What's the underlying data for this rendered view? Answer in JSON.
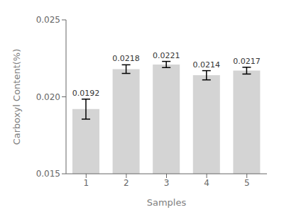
{
  "chart_data": {
    "type": "bar",
    "categories": [
      "1",
      "2",
      "3",
      "4",
      "5"
    ],
    "values": [
      0.0192,
      0.0218,
      0.0221,
      0.0214,
      0.0217
    ],
    "errors": [
      0.00065,
      0.00028,
      0.0002,
      0.0003,
      0.00022
    ],
    "color": "#d4d4d4",
    "xlabel": "Samples",
    "ylabel": "Carboxyl Content(%)",
    "ylim": [
      0.015,
      0.025
    ],
    "yticks": [
      0.015,
      {
        "value": 0.02,
        "label": "0.020"
      },
      0.025
    ],
    "grid": false,
    "data_labels": true
  }
}
